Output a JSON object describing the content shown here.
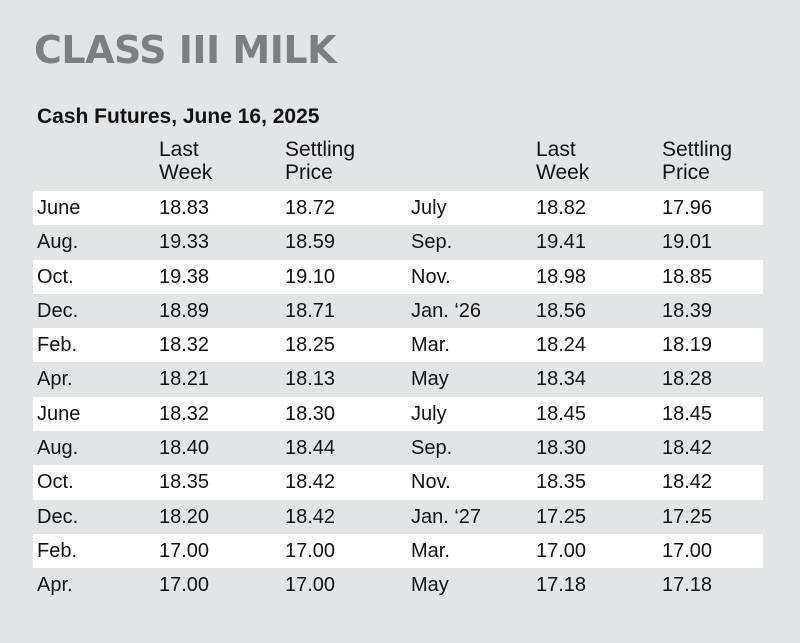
{
  "title": "CLASS III MILK",
  "subtitle": "Cash Futures, June 16, 2025",
  "headers": {
    "last_week": "Last\nWeek",
    "settling_price": "Settling\nPrice"
  },
  "rows": [
    {
      "m1": "June",
      "lw1": "18.83",
      "sp1": "18.72",
      "m2": "July",
      "lw2": "18.82",
      "sp2": "17.96"
    },
    {
      "m1": "Aug.",
      "lw1": "19.33",
      "sp1": "18.59",
      "m2": "Sep.",
      "lw2": "19.41",
      "sp2": "19.01"
    },
    {
      "m1": "Oct.",
      "lw1": "19.38",
      "sp1": "19.10",
      "m2": "Nov.",
      "lw2": "18.98",
      "sp2": "18.85"
    },
    {
      "m1": "Dec.",
      "lw1": "18.89",
      "sp1": "18.71",
      "m2": "Jan. ‘26",
      "lw2": "18.56",
      "sp2": "18.39"
    },
    {
      "m1": "Feb.",
      "lw1": "18.32",
      "sp1": "18.25",
      "m2": "Mar.",
      "lw2": "18.24",
      "sp2": "18.19"
    },
    {
      "m1": "Apr.",
      "lw1": "18.21",
      "sp1": "18.13",
      "m2": "May",
      "lw2": "18.34",
      "sp2": "18.28"
    },
    {
      "m1": "June",
      "lw1": "18.32",
      "sp1": "18.30",
      "m2": "July",
      "lw2": "18.45",
      "sp2": "18.45"
    },
    {
      "m1": "Aug.",
      "lw1": "18.40",
      "sp1": "18.44",
      "m2": "Sep.",
      "lw2": "18.30",
      "sp2": "18.42"
    },
    {
      "m1": "Oct.",
      "lw1": "18.35",
      "sp1": "18.42",
      "m2": "Nov.",
      "lw2": "18.35",
      "sp2": "18.42"
    },
    {
      "m1": "Dec.",
      "lw1": "18.20",
      "sp1": "18.42",
      "m2": "Jan. ‘27",
      "lw2": "17.25",
      "sp2": "17.25"
    },
    {
      "m1": "Feb.",
      "lw1": "17.00",
      "sp1": "17.00",
      "m2": "Mar.",
      "lw2": "17.00",
      "sp2": "17.00"
    },
    {
      "m1": "Apr.",
      "lw1": "17.00",
      "sp1": "17.00",
      "m2": "May",
      "lw2": "17.18",
      "sp2": "17.18"
    }
  ],
  "colors": {
    "background": "#e3e4e6",
    "title": "#7c7e80",
    "row_shade": "#ffffff",
    "text": "#111111"
  }
}
